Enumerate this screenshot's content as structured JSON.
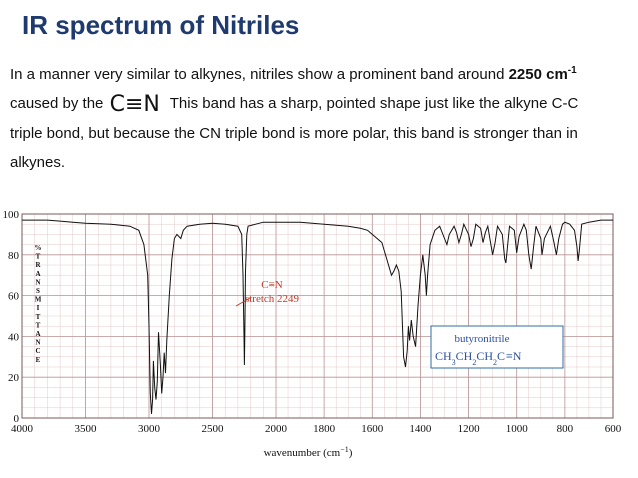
{
  "slide": {
    "title": "IR spectrum of Nitriles",
    "paragraph": {
      "line1_pre": "In a manner very similar to alkynes, nitriles show a prominent band around ",
      "line1_bold": "2250 cm",
      "line1_sup": "-1",
      "line2_pre": "caused by the",
      "cn_symbol": "C≡N",
      "line2_post": "This band has a sharp, pointed shape just like the alkyne C-C",
      "line3": "triple bond, but because the CN triple bond is more polar, this band is stronger than in",
      "line4": "alkynes."
    }
  },
  "chart_data": {
    "type": "line",
    "xlabel_main": "wavenumber (cm",
    "xlabel_sup": "−1",
    "xlabel_end": ")",
    "ylabel_vertical": "%TRANSMITTANCE",
    "xlim": [
      4000,
      600
    ],
    "ylim": [
      0,
      100
    ],
    "x_ticks": [
      4000,
      3500,
      3000,
      2500,
      2000,
      1800,
      1600,
      1400,
      1200,
      1000,
      800,
      600
    ],
    "y_ticks": [
      0,
      20,
      40,
      60,
      80,
      100
    ],
    "annotation": {
      "line1": "C≡N",
      "line2": "stretch 2249"
    },
    "legend_box": {
      "name": "butyronitrile",
      "formula_parts": [
        "CH",
        "3",
        "CH",
        "2",
        "CH",
        "2",
        "C",
        "≡N"
      ]
    },
    "series": [
      {
        "points": [
          [
            4000,
            97
          ],
          [
            3800,
            97
          ],
          [
            3700,
            96.5
          ],
          [
            3600,
            96
          ],
          [
            3500,
            95.5
          ],
          [
            3300,
            95
          ],
          [
            3150,
            94
          ],
          [
            3080,
            92
          ],
          [
            3040,
            85
          ],
          [
            3010,
            70
          ],
          [
            3000,
            45
          ],
          [
            2990,
            12
          ],
          [
            2980,
            2
          ],
          [
            2972,
            9
          ],
          [
            2965,
            28
          ],
          [
            2955,
            15
          ],
          [
            2945,
            9
          ],
          [
            2935,
            18
          ],
          [
            2925,
            42
          ],
          [
            2910,
            26
          ],
          [
            2900,
            12
          ],
          [
            2890,
            20
          ],
          [
            2880,
            32
          ],
          [
            2870,
            22
          ],
          [
            2860,
            38
          ],
          [
            2840,
            60
          ],
          [
            2820,
            78
          ],
          [
            2800,
            88
          ],
          [
            2780,
            90
          ],
          [
            2750,
            88
          ],
          [
            2730,
            92
          ],
          [
            2700,
            94
          ],
          [
            2600,
            95
          ],
          [
            2500,
            95.5
          ],
          [
            2400,
            95
          ],
          [
            2300,
            94
          ],
          [
            2270,
            90
          ],
          [
            2260,
            70
          ],
          [
            2252,
            40
          ],
          [
            2249,
            26
          ],
          [
            2246,
            40
          ],
          [
            2240,
            72
          ],
          [
            2230,
            90
          ],
          [
            2220,
            94
          ],
          [
            2100,
            96
          ],
          [
            2000,
            96
          ],
          [
            1900,
            96
          ],
          [
            1800,
            95
          ],
          [
            1700,
            94
          ],
          [
            1650,
            93
          ],
          [
            1620,
            92
          ],
          [
            1600,
            90
          ],
          [
            1580,
            88
          ],
          [
            1560,
            86
          ],
          [
            1540,
            78
          ],
          [
            1520,
            70
          ],
          [
            1510,
            72
          ],
          [
            1500,
            75
          ],
          [
            1490,
            72
          ],
          [
            1480,
            62
          ],
          [
            1470,
            30
          ],
          [
            1462,
            25
          ],
          [
            1455,
            33
          ],
          [
            1450,
            45
          ],
          [
            1445,
            38
          ],
          [
            1438,
            48
          ],
          [
            1430,
            40
          ],
          [
            1420,
            35
          ],
          [
            1410,
            55
          ],
          [
            1400,
            70
          ],
          [
            1390,
            80
          ],
          [
            1380,
            70
          ],
          [
            1375,
            60
          ],
          [
            1370,
            70
          ],
          [
            1360,
            85
          ],
          [
            1340,
            92
          ],
          [
            1320,
            94
          ],
          [
            1300,
            88
          ],
          [
            1290,
            85
          ],
          [
            1280,
            90
          ],
          [
            1260,
            94
          ],
          [
            1250,
            91
          ],
          [
            1240,
            86
          ],
          [
            1230,
            90
          ],
          [
            1220,
            95
          ],
          [
            1200,
            90
          ],
          [
            1190,
            84
          ],
          [
            1180,
            88
          ],
          [
            1170,
            95
          ],
          [
            1150,
            93
          ],
          [
            1140,
            86
          ],
          [
            1130,
            91
          ],
          [
            1120,
            94
          ],
          [
            1110,
            87
          ],
          [
            1100,
            80
          ],
          [
            1090,
            86
          ],
          [
            1080,
            94
          ],
          [
            1060,
            90
          ],
          [
            1050,
            78
          ],
          [
            1045,
            76
          ],
          [
            1040,
            82
          ],
          [
            1030,
            94
          ],
          [
            1010,
            92
          ],
          [
            1000,
            81
          ],
          [
            990,
            89
          ],
          [
            970,
            95
          ],
          [
            960,
            92
          ],
          [
            950,
            80
          ],
          [
            940,
            73
          ],
          [
            930,
            84
          ],
          [
            920,
            94
          ],
          [
            900,
            88
          ],
          [
            895,
            80
          ],
          [
            885,
            88
          ],
          [
            860,
            94
          ],
          [
            845,
            86
          ],
          [
            835,
            80
          ],
          [
            825,
            88
          ],
          [
            810,
            95
          ],
          [
            800,
            96
          ],
          [
            780,
            95
          ],
          [
            760,
            92
          ],
          [
            750,
            84
          ],
          [
            745,
            77
          ],
          [
            740,
            82
          ],
          [
            730,
            95
          ],
          [
            700,
            96
          ],
          [
            650,
            97
          ],
          [
            600,
            97
          ]
        ]
      }
    ]
  }
}
